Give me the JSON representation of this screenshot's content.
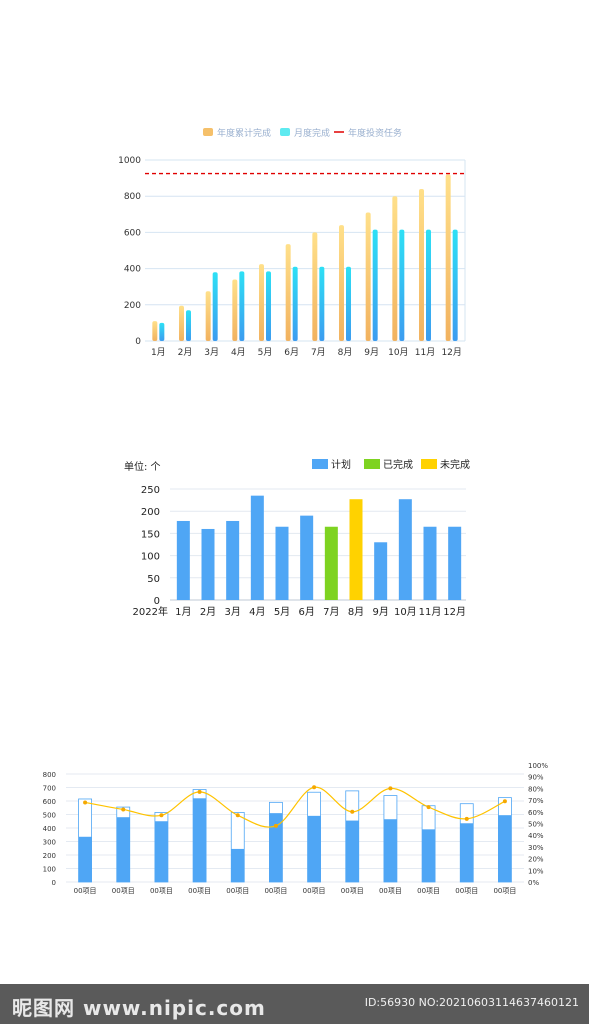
{
  "chart_data": [
    {
      "type": "bar",
      "legend": [
        "年度累计完成",
        "月度完成",
        "年度投资任务"
      ],
      "legend_position": "top-center",
      "categories": [
        "1月",
        "2月",
        "3月",
        "4月",
        "5月",
        "6月",
        "7月",
        "8月",
        "9月",
        "10月",
        "11月",
        "12月"
      ],
      "series": [
        {
          "name": "年度累计完成",
          "values": [
            110,
            195,
            275,
            340,
            425,
            535,
            600,
            640,
            710,
            800,
            840,
            920
          ]
        },
        {
          "name": "月度完成",
          "values": [
            100,
            170,
            380,
            385,
            385,
            410,
            410,
            410,
            615,
            615,
            615,
            615
          ]
        }
      ],
      "reference_line": {
        "name": "年度投资任务",
        "value": 925
      },
      "yticks": [
        0,
        200,
        400,
        600,
        800,
        1000
      ],
      "ylim": [
        0,
        1000
      ],
      "grid": true,
      "colors": {
        "cumulative": "#F5C06A",
        "monthly": "#29C6F0",
        "target": "#E00000"
      }
    },
    {
      "type": "bar",
      "unit_label": "单位: 个",
      "legend": [
        "计划",
        "已完成",
        "未完成"
      ],
      "legend_position": "top-right",
      "x_prefix": "2022年",
      "categories": [
        "1月",
        "2月",
        "3月",
        "4月",
        "5月",
        "6月",
        "7月",
        "8月",
        "9月",
        "10月",
        "11月",
        "12月"
      ],
      "values": [
        178,
        160,
        178,
        235,
        165,
        190,
        165,
        227,
        130,
        227,
        165,
        165
      ],
      "bar_status": [
        "计划",
        "计划",
        "计划",
        "计划",
        "计划",
        "计划",
        "已完成",
        "未完成",
        "计划",
        "计划",
        "计划",
        "计划"
      ],
      "yticks": [
        0,
        50,
        100,
        150,
        200,
        250
      ],
      "ylim": [
        0,
        250
      ],
      "grid": true,
      "colors": {
        "计划": "#4FA6F5",
        "已完成": "#7ED321",
        "未完成": "#FFD200"
      }
    },
    {
      "type": "bar",
      "categories": [
        "00项目",
        "00项目",
        "00项目",
        "00项目",
        "00项目",
        "00项目",
        "00项目",
        "00项目",
        "00项目",
        "00项目",
        "00项目",
        "00项目"
      ],
      "series": [
        {
          "values": [
            615,
            555,
            515,
            685,
            515,
            590,
            665,
            675,
            640,
            565,
            580,
            625
          ]
        },
        {
          "values": [
            335,
            480,
            450,
            620,
            245,
            510,
            490,
            455,
            465,
            390,
            435,
            495
          ]
        }
      ],
      "line": {
        "axis": "right",
        "values": [
          68,
          62,
          57,
          77,
          57,
          48,
          81,
          60,
          80,
          64,
          54,
          69
        ]
      },
      "yticks_left": [
        0,
        100,
        200,
        300,
        400,
        500,
        600,
        700,
        800
      ],
      "ylim_left": [
        0,
        800
      ],
      "yticks_right": [
        "0%",
        "10%",
        "20%",
        "30%",
        "40%",
        "50%",
        "60%",
        "70%",
        "80%",
        "90%",
        "100%"
      ],
      "ylim_right": [
        0,
        100
      ],
      "grid": true,
      "colors": {
        "outline": "#4FA6F5",
        "fill": "#4FA6F5",
        "line": "#FFC300"
      }
    }
  ],
  "watermark": {
    "logo_text": "昵图网 www.nipic.com",
    "id_text": "ID:56930 NO:20210603114637460121"
  }
}
